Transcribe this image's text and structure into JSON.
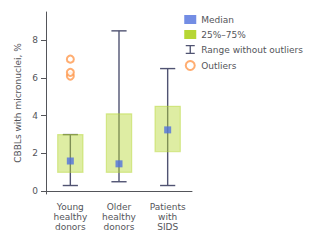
{
  "chart_data": {
    "type": "box",
    "ylabel": "CBBLs with micronuclei, %",
    "categories": [
      "Young\nhealthy\ndonors",
      "Older\nhealthy\ndonors",
      "Patients\nwith\nSIDS"
    ],
    "series": [
      {
        "name": "Median",
        "type": "scatter",
        "marker": "square",
        "values": [
          1.6,
          1.45,
          3.25
        ]
      },
      {
        "name": "25%–75%",
        "type": "box",
        "values": [
          [
            1.0,
            3.0
          ],
          [
            1.0,
            4.1
          ],
          [
            2.1,
            4.5
          ]
        ]
      },
      {
        "name": "Range without outliers",
        "type": "whisker",
        "values": [
          [
            0.3,
            3.0
          ],
          [
            0.5,
            8.5
          ],
          [
            0.3,
            6.5
          ]
        ]
      },
      {
        "name": "Outliers",
        "type": "scatter",
        "marker": "circle",
        "values": [
          [
            6.1,
            6.3,
            7.0
          ],
          [],
          []
        ]
      }
    ],
    "ylim": [
      -0.15,
      9.5
    ],
    "yticks": [
      0,
      2,
      4,
      6,
      8
    ],
    "grid": false,
    "legend": "upper right"
  }
}
